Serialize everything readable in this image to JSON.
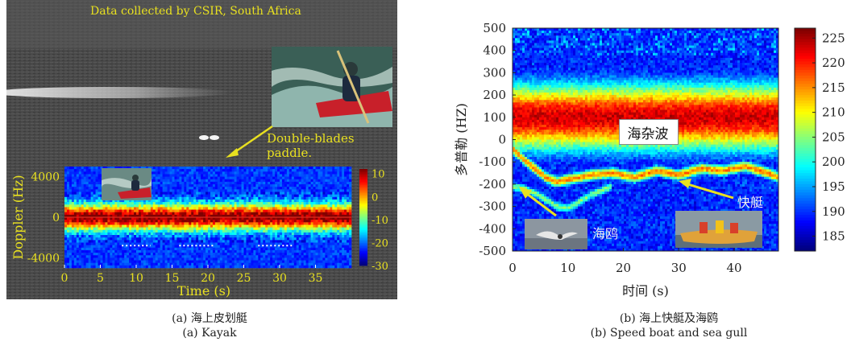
{
  "colors": {
    "caption": "#222222",
    "annot_yellow": "#e8e020",
    "panel_a_bg": "#4b4b4b"
  },
  "panel_a": {
    "banner": "Data collected by CSIR, South Africa",
    "photo_label": "Double-blades paddle.",
    "caption_cn": "(a) 海上皮划艇",
    "caption_en": "(a) Kayak"
  },
  "panel_b": {
    "clutter_label": "海杂波",
    "boat_label": "快艇",
    "gull_label": "海鸥",
    "caption_cn": "(b) 海上快艇及海鸥",
    "caption_en": "(b) Speed boat and sea gull"
  },
  "chart_data": [
    {
      "type": "heatmap",
      "title": "",
      "xlabel": "Time (s)",
      "ylabel": "Doppler (Hz)",
      "xlim": [
        0,
        40
      ],
      "ylim": [
        -5000,
        5000
      ],
      "x_ticks": [
        0,
        5,
        10,
        15,
        20,
        25,
        30,
        35
      ],
      "y_ticks": [
        4000,
        0,
        -4000
      ],
      "colorbar": {
        "range": [
          -30,
          12
        ],
        "ticks": [
          10,
          0,
          -10,
          -20,
          -30
        ]
      },
      "series": [
        {
          "description_source": "visible bright band",
          "x": [
            0,
            5,
            10,
            15,
            20,
            25,
            30,
            35,
            40
          ],
          "y": [
            0,
            0,
            0,
            0,
            0,
            0,
            0,
            0,
            0
          ]
        }
      ]
    },
    {
      "type": "heatmap",
      "title": "",
      "xlabel": "时间 (s)",
      "ylabel": "多普勒 (HZ)",
      "xlim": [
        0,
        48
      ],
      "ylim": [
        -500,
        500
      ],
      "x_ticks": [
        0,
        10,
        20,
        30,
        40
      ],
      "y_ticks": [
        500,
        400,
        300,
        200,
        100,
        0,
        -100,
        -200,
        -300,
        -400,
        -500
      ],
      "colorbar": {
        "range": [
          182,
          227
        ],
        "ticks": [
          225,
          220,
          215,
          210,
          205,
          200,
          195,
          190,
          185
        ]
      },
      "series": [
        {
          "name": "海杂波",
          "x": [
            0,
            10,
            20,
            30,
            40,
            48
          ],
          "y": [
            100,
            100,
            100,
            100,
            100,
            100
          ]
        },
        {
          "name": "快艇",
          "x": [
            0,
            2,
            4,
            6,
            8,
            10,
            14,
            18,
            22,
            26,
            30,
            34,
            38,
            42,
            46,
            48
          ],
          "y": [
            -40,
            -90,
            -130,
            -170,
            -190,
            -180,
            -160,
            -150,
            -170,
            -140,
            -160,
            -130,
            -140,
            -120,
            -150,
            -170
          ]
        },
        {
          "name": "海鸥",
          "x": [
            0,
            2,
            4,
            6,
            8,
            10,
            12,
            14,
            16,
            18
          ],
          "y": [
            -210,
            -220,
            -240,
            -270,
            -300,
            -310,
            -280,
            -250,
            -230,
            -210
          ]
        }
      ]
    }
  ]
}
